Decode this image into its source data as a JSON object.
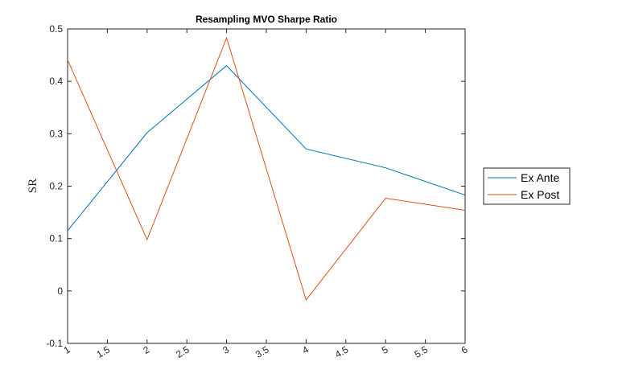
{
  "chart_data": {
    "type": "line",
    "title": "Resampling MVO Sharpe Ratio",
    "xlabel": "",
    "ylabel": "SR",
    "xlim": [
      1,
      6
    ],
    "ylim": [
      -0.1,
      0.5
    ],
    "x_ticks": [
      "1",
      "1.5",
      "2",
      "2.5",
      "3",
      "3.5",
      "4",
      "4.5",
      "5",
      "5.5",
      "6"
    ],
    "y_ticks": [
      "-0.1",
      "0",
      "0.1",
      "0.2",
      "0.3",
      "0.4",
      "0.5"
    ],
    "grid": false,
    "legend_position": "outside-right",
    "x": [
      1,
      2,
      3,
      4,
      5,
      6
    ],
    "series": [
      {
        "name": "Ex Ante",
        "color": "#0072BD",
        "values": [
          0.115,
          0.302,
          0.43,
          0.271,
          0.235,
          0.183
        ]
      },
      {
        "name": "Ex Post",
        "color": "#D95319",
        "values": [
          0.441,
          0.098,
          0.483,
          -0.017,
          0.177,
          0.154
        ]
      }
    ]
  }
}
